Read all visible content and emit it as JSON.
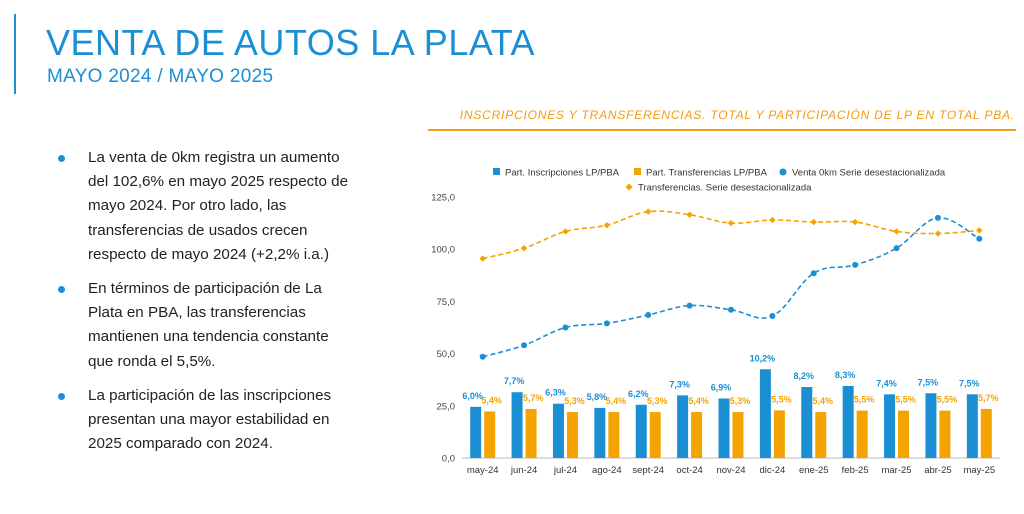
{
  "header": {
    "title": "VENTA DE AUTOS LA PLATA",
    "subtitle": "MAYO 2024 / MAYO 2025"
  },
  "bullets": [
    "La venta de 0km registra un aumento del 102,6% en mayo 2025 respecto de mayo 2024. Por otro lado, las transferencias de usados crecen respecto de mayo 2024 (+2,2% i.a.)",
    "En términos de participación de La Plata en PBA, las transferencias mantienen una tendencia constante que ronda el 5,5%.",
    "La participación de las inscripciones presentan una mayor estabilidad en 2025 comparado con 2024."
  ],
  "chart_header": "INSCRIPCIONES Y TRANSFERENCIAS. TOTAL Y PARTICIPACIÓN DE LP EN TOTAL PBA.",
  "colors": {
    "blue": "#1a8fd4",
    "orange": "#f5a300",
    "title": "#1a8fd4",
    "header": "#f39c12"
  },
  "chart_data": {
    "type": "bar",
    "categories": [
      "may-24",
      "jun-24",
      "jul-24",
      "ago-24",
      "sept-24",
      "oct-24",
      "nov-24",
      "dic-24",
      "ene-25",
      "feb-25",
      "mar-25",
      "abr-25",
      "may-25"
    ],
    "ylim": [
      0,
      125
    ],
    "yticks": [
      "0,0",
      "25,0",
      "50,0",
      "75,0",
      "100,0",
      "125,0"
    ],
    "ytick_values": [
      0,
      25,
      50,
      75,
      100,
      125
    ],
    "series": [
      {
        "name": "Part. Inscripciones LP/PBA",
        "kind": "bar",
        "color": "#1a8fd4",
        "values": [
          24.5,
          31.5,
          26,
          24,
          25.5,
          30,
          28.5,
          42.5,
          34,
          34.5,
          30.5,
          31,
          30.5
        ],
        "labels": [
          "6,0%",
          "7,7%",
          "6,3%",
          "5,8%",
          "6,2%",
          "7,3%",
          "6,9%",
          "10,2%",
          "8,2%",
          "8,3%",
          "7,4%",
          "7,5%",
          "7,5%"
        ]
      },
      {
        "name": "Part. Transferencias LP/PBA",
        "kind": "bar",
        "color": "#f5a300",
        "values": [
          22.3,
          23.5,
          22,
          22,
          22,
          22,
          22,
          22.8,
          22,
          22.7,
          22.7,
          22.7,
          23.5
        ],
        "labels": [
          "5,4%",
          "5,7%",
          "5,3%",
          "5,4%",
          "5,3%",
          "5,4%",
          "5,3%",
          "5,5%",
          "5,4%",
          "5,5%",
          "5,5%",
          "5,5%",
          "5,7%"
        ]
      },
      {
        "name": "Venta 0km Serie desestacionalizada",
        "kind": "line",
        "color": "#1a8fd4",
        "values": [
          48.5,
          54,
          62.5,
          64.5,
          68.5,
          73,
          71,
          68,
          88.5,
          92.5,
          100.5,
          115,
          105
        ]
      },
      {
        "name": "Transferencias. Serie desestacionalizada",
        "kind": "line",
        "color": "#f5a300",
        "values": [
          95.5,
          100.5,
          108.5,
          111.5,
          118,
          116.5,
          112.5,
          114,
          113,
          113,
          108.5,
          107.5,
          109
        ]
      }
    ],
    "legend_position": "top"
  }
}
